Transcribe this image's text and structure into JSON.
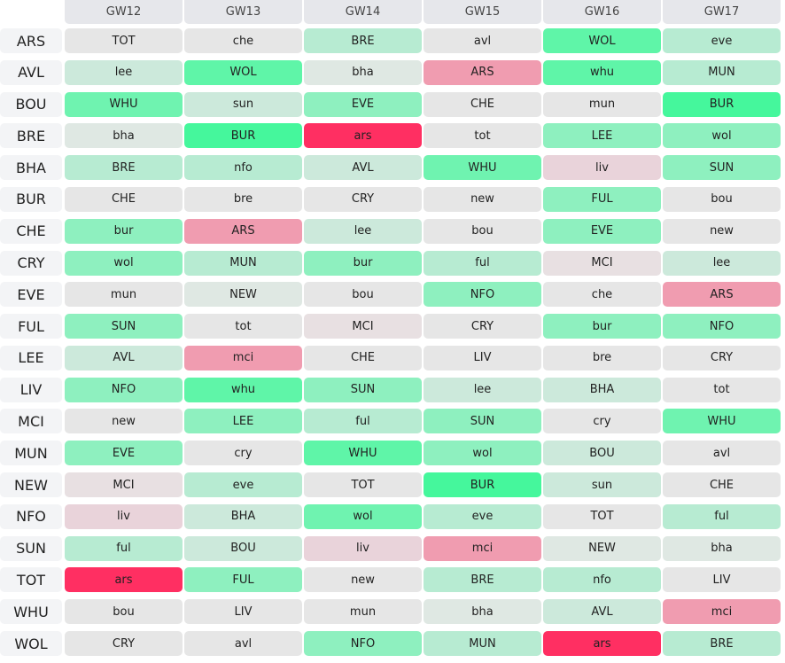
{
  "columns": [
    "GW12",
    "GW13",
    "GW14",
    "GW15",
    "GW16",
    "GW17"
  ],
  "palette": {
    "g0": "#e6e6e6",
    "g1": "#dfe8e3",
    "g2": "#cce9db",
    "g3": "#b7ebd2",
    "g4": "#8ef0bf",
    "g5": "#6ff3b0",
    "g6": "#5ff5a8",
    "g7": "#45f79c",
    "p1": "#e9d3da",
    "p1b": "#e8e0e2",
    "p2": "#f09cb0",
    "p3": "#ff2f62"
  },
  "rows": [
    {
      "team": "ARS",
      "fixtures": [
        [
          "TOT",
          "g0"
        ],
        [
          "che",
          "g0"
        ],
        [
          "BRE",
          "g3"
        ],
        [
          "avl",
          "g0"
        ],
        [
          "WOL",
          "g6"
        ],
        [
          "eve",
          "g3"
        ]
      ]
    },
    {
      "team": "AVL",
      "fixtures": [
        [
          "lee",
          "g2"
        ],
        [
          "WOL",
          "g6"
        ],
        [
          "bha",
          "g1"
        ],
        [
          "ARS",
          "p2"
        ],
        [
          "whu",
          "g6"
        ],
        [
          "MUN",
          "g3"
        ]
      ]
    },
    {
      "team": "BOU",
      "fixtures": [
        [
          "WHU",
          "g5"
        ],
        [
          "sun",
          "g2"
        ],
        [
          "EVE",
          "g4"
        ],
        [
          "CHE",
          "g0"
        ],
        [
          "mun",
          "g0"
        ],
        [
          "BUR",
          "g7"
        ]
      ]
    },
    {
      "team": "BRE",
      "fixtures": [
        [
          "bha",
          "g1"
        ],
        [
          "BUR",
          "g7"
        ],
        [
          "ars",
          "p3"
        ],
        [
          "tot",
          "g0"
        ],
        [
          "LEE",
          "g4"
        ],
        [
          "wol",
          "g4"
        ]
      ]
    },
    {
      "team": "BHA",
      "fixtures": [
        [
          "BRE",
          "g3"
        ],
        [
          "nfo",
          "g3"
        ],
        [
          "AVL",
          "g2"
        ],
        [
          "WHU",
          "g5"
        ],
        [
          "liv",
          "p1"
        ],
        [
          "SUN",
          "g4"
        ]
      ]
    },
    {
      "team": "BUR",
      "fixtures": [
        [
          "CHE",
          "g0"
        ],
        [
          "bre",
          "g0"
        ],
        [
          "CRY",
          "g0"
        ],
        [
          "new",
          "g0"
        ],
        [
          "FUL",
          "g4"
        ],
        [
          "bou",
          "g0"
        ]
      ]
    },
    {
      "team": "CHE",
      "fixtures": [
        [
          "bur",
          "g4"
        ],
        [
          "ARS",
          "p2"
        ],
        [
          "lee",
          "g2"
        ],
        [
          "bou",
          "g0"
        ],
        [
          "EVE",
          "g4"
        ],
        [
          "new",
          "g0"
        ]
      ]
    },
    {
      "team": "CRY",
      "fixtures": [
        [
          "wol",
          "g4"
        ],
        [
          "MUN",
          "g3"
        ],
        [
          "bur",
          "g4"
        ],
        [
          "ful",
          "g3"
        ],
        [
          "MCI",
          "p1b"
        ],
        [
          "lee",
          "g2"
        ]
      ]
    },
    {
      "team": "EVE",
      "fixtures": [
        [
          "mun",
          "g0"
        ],
        [
          "NEW",
          "g1"
        ],
        [
          "bou",
          "g0"
        ],
        [
          "NFO",
          "g4"
        ],
        [
          "che",
          "g0"
        ],
        [
          "ARS",
          "p2"
        ]
      ]
    },
    {
      "team": "FUL",
      "fixtures": [
        [
          "SUN",
          "g4"
        ],
        [
          "tot",
          "g0"
        ],
        [
          "MCI",
          "p1b"
        ],
        [
          "CRY",
          "g0"
        ],
        [
          "bur",
          "g4"
        ],
        [
          "NFO",
          "g4"
        ]
      ]
    },
    {
      "team": "LEE",
      "fixtures": [
        [
          "AVL",
          "g2"
        ],
        [
          "mci",
          "p2"
        ],
        [
          "CHE",
          "g0"
        ],
        [
          "LIV",
          "g0"
        ],
        [
          "bre",
          "g0"
        ],
        [
          "CRY",
          "g0"
        ]
      ]
    },
    {
      "team": "LIV",
      "fixtures": [
        [
          "NFO",
          "g4"
        ],
        [
          "whu",
          "g6"
        ],
        [
          "SUN",
          "g4"
        ],
        [
          "lee",
          "g2"
        ],
        [
          "BHA",
          "g2"
        ],
        [
          "tot",
          "g0"
        ]
      ]
    },
    {
      "team": "MCI",
      "fixtures": [
        [
          "new",
          "g0"
        ],
        [
          "LEE",
          "g4"
        ],
        [
          "ful",
          "g3"
        ],
        [
          "SUN",
          "g4"
        ],
        [
          "cry",
          "g0"
        ],
        [
          "WHU",
          "g5"
        ]
      ]
    },
    {
      "team": "MUN",
      "fixtures": [
        [
          "EVE",
          "g4"
        ],
        [
          "cry",
          "g0"
        ],
        [
          "WHU",
          "g6"
        ],
        [
          "wol",
          "g4"
        ],
        [
          "BOU",
          "g2"
        ],
        [
          "avl",
          "g0"
        ]
      ]
    },
    {
      "team": "NEW",
      "fixtures": [
        [
          "MCI",
          "p1b"
        ],
        [
          "eve",
          "g3"
        ],
        [
          "TOT",
          "g0"
        ],
        [
          "BUR",
          "g7"
        ],
        [
          "sun",
          "g2"
        ],
        [
          "CHE",
          "g0"
        ]
      ]
    },
    {
      "team": "NFO",
      "fixtures": [
        [
          "liv",
          "p1"
        ],
        [
          "BHA",
          "g2"
        ],
        [
          "wol",
          "g5"
        ],
        [
          "eve",
          "g3"
        ],
        [
          "TOT",
          "g0"
        ],
        [
          "ful",
          "g3"
        ]
      ]
    },
    {
      "team": "SUN",
      "fixtures": [
        [
          "ful",
          "g3"
        ],
        [
          "BOU",
          "g2"
        ],
        [
          "liv",
          "p1"
        ],
        [
          "mci",
          "p2"
        ],
        [
          "NEW",
          "g1"
        ],
        [
          "bha",
          "g1"
        ]
      ]
    },
    {
      "team": "TOT",
      "fixtures": [
        [
          "ars",
          "p3"
        ],
        [
          "FUL",
          "g4"
        ],
        [
          "new",
          "g0"
        ],
        [
          "BRE",
          "g3"
        ],
        [
          "nfo",
          "g3"
        ],
        [
          "LIV",
          "g0"
        ]
      ]
    },
    {
      "team": "WHU",
      "fixtures": [
        [
          "bou",
          "g0"
        ],
        [
          "LIV",
          "g0"
        ],
        [
          "mun",
          "g0"
        ],
        [
          "bha",
          "g1"
        ],
        [
          "AVL",
          "g2"
        ],
        [
          "mci",
          "p2"
        ]
      ]
    },
    {
      "team": "WOL",
      "fixtures": [
        [
          "CRY",
          "g0"
        ],
        [
          "avl",
          "g0"
        ],
        [
          "NFO",
          "g4"
        ],
        [
          "MUN",
          "g3"
        ],
        [
          "ars",
          "p3"
        ],
        [
          "BRE",
          "g3"
        ]
      ]
    }
  ]
}
